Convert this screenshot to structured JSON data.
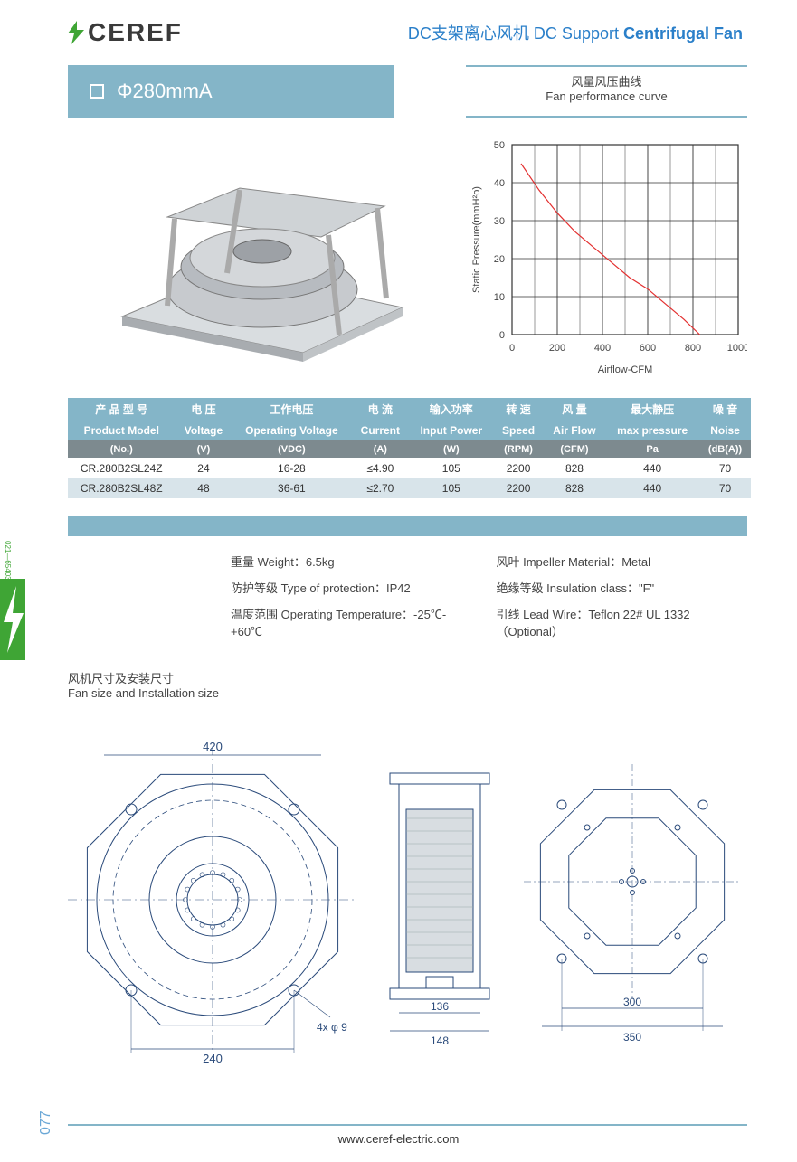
{
  "header": {
    "logo_text": "CEREF",
    "title_cn": "DC支架离心风机",
    "title_en1": "DC Support",
    "title_en2": "Centrifugal Fan"
  },
  "model_box": {
    "label": "Φ280mmA"
  },
  "curve_box": {
    "line1": "风量风压曲线",
    "line2": "Fan performance curve"
  },
  "chart": {
    "type": "line",
    "x_label": "Airflow-CFM",
    "y_label": "Static Pressure(mmH²o)",
    "xlim": [
      0,
      1000
    ],
    "ylim": [
      0,
      50
    ],
    "xticks": [
      0,
      200,
      400,
      600,
      800,
      1000
    ],
    "yticks": [
      0,
      10,
      20,
      30,
      40,
      50
    ],
    "grid_color": "#333333",
    "bg_color": "#ffffff",
    "line_color": "#e33030",
    "line_width": 1.2,
    "points": [
      [
        40,
        45
      ],
      [
        120,
        38
      ],
      [
        200,
        32
      ],
      [
        280,
        27
      ],
      [
        360,
        23
      ],
      [
        440,
        19
      ],
      [
        520,
        15
      ],
      [
        600,
        12
      ],
      [
        680,
        8
      ],
      [
        760,
        4
      ],
      [
        830,
        0
      ]
    ],
    "tick_fontsize": 11,
    "label_fontsize": 11
  },
  "table": {
    "headers_cn": [
      "产 品 型 号",
      "电 压",
      "工作电压",
      "电 流",
      "输入功率",
      "转 速",
      "风 量",
      "最大静压",
      "噪 音"
    ],
    "headers_en": [
      "Product Model",
      "Voltage",
      "Operating Voltage",
      "Current",
      "Input Power",
      "Speed",
      "Air Flow",
      "max pressure",
      "Noise"
    ],
    "units": [
      "(No.)",
      "(V)",
      "(VDC)",
      "(A)",
      "(W)",
      "(RPM)",
      "(CFM)",
      "Pa",
      "(dB(A))"
    ],
    "rows": [
      [
        "CR.280B2SL24Z",
        "24",
        "16-28",
        "≤4.90",
        "105",
        "2200",
        "828",
        "440",
        "70"
      ],
      [
        "CR.280B2SL48Z",
        "48",
        "36-61",
        "≤2.70",
        "105",
        "2200",
        "828",
        "440",
        "70"
      ]
    ]
  },
  "info": {
    "weight": "重量 Weight：6.5kg",
    "impeller": "风叶 Impeller Material：Metal",
    "protection": "防护等级 Type of protection：IP42",
    "insulation": "绝缘等级 Insulation class：\"F\"",
    "temperature": "温度范围 Operating Temperature：-25℃-+60℃",
    "lead": "引线 Lead Wire：Teflon 22# UL  1332（Optional）"
  },
  "dim_title": {
    "cn": "风机尺寸及安装尺寸",
    "en": "Fan size and Installation size"
  },
  "dimensions": {
    "top_label": "420",
    "hole_label": "4x φ 9",
    "bottom_label": "240",
    "side_w1": "136",
    "side_w2": "148",
    "mount_inner": "300",
    "mount_outer": "350"
  },
  "footer": {
    "url": "www.ceref-electric.com",
    "page": "077"
  },
  "side_tag": "021—65403223",
  "colors": {
    "brand_blue": "#84b5c8",
    "header_blue": "#2a7fc9",
    "unit_row": "#7d8a8f",
    "row_alt": "#d8e4ea"
  }
}
